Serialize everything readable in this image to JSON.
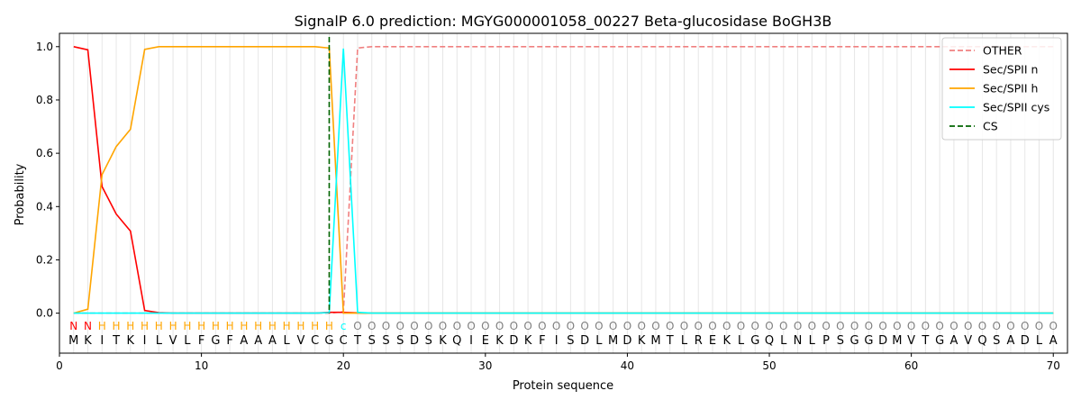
{
  "chart_data": {
    "type": "line",
    "title": "SignalP 6.0 prediction: MGYG000001058_00227 Beta-glucosidase BoGH3B",
    "xlabel": "Protein sequence",
    "ylabel": "Probability",
    "xlim": [
      0,
      71
    ],
    "ylim": [
      -0.15,
      1.05
    ],
    "xticks": [
      0,
      10,
      20,
      30,
      40,
      50,
      60,
      70
    ],
    "yticks": [
      0.0,
      0.2,
      0.4,
      0.6,
      0.8,
      1.0
    ],
    "xtick_labels": [
      "0",
      "10",
      "20",
      "30",
      "40",
      "50",
      "60",
      "70"
    ],
    "ytick_labels": [
      "0.0",
      "0.2",
      "0.4",
      "0.6",
      "0.8",
      "1.0"
    ],
    "vertical_grid": true,
    "legend_position": "top-right",
    "sequence": [
      "M",
      "K",
      "I",
      "T",
      "K",
      "I",
      "L",
      "V",
      "L",
      "F",
      "G",
      "F",
      "A",
      "A",
      "A",
      "L",
      "V",
      "C",
      "G",
      "C",
      "T",
      "S",
      "S",
      "S",
      "D",
      "S",
      "K",
      "Q",
      "I",
      "E",
      "K",
      "D",
      "K",
      "F",
      "I",
      "S",
      "D",
      "L",
      "M",
      "D",
      "K",
      "M",
      "T",
      "L",
      "R",
      "E",
      "K",
      "L",
      "G",
      "Q",
      "L",
      "N",
      "L",
      "P",
      "S",
      "G",
      "G",
      "D",
      "M",
      "V",
      "T",
      "G",
      "A",
      "V",
      "Q",
      "S",
      "A",
      "D",
      "L",
      "A"
    ],
    "region_labels": [
      "N",
      "N",
      "H",
      "H",
      "H",
      "H",
      "H",
      "H",
      "H",
      "H",
      "H",
      "H",
      "H",
      "H",
      "H",
      "H",
      "H",
      "H",
      "H",
      "C",
      "O",
      "O",
      "O",
      "O",
      "O",
      "O",
      "O",
      "O",
      "O",
      "O",
      "O",
      "O",
      "O",
      "O",
      "O",
      "O",
      "O",
      "O",
      "O",
      "O",
      "O",
      "O",
      "O",
      "O",
      "O",
      "O",
      "O",
      "O",
      "O",
      "O",
      "O",
      "O",
      "O",
      "O",
      "O",
      "O",
      "O",
      "O",
      "O",
      "O",
      "O",
      "O",
      "O",
      "O",
      "O",
      "O",
      "O",
      "O",
      "O",
      "O"
    ],
    "region_display": [
      "N",
      "N",
      "H",
      "H",
      "H",
      "H",
      "H",
      "H",
      "H",
      "H",
      "H",
      "H",
      "H",
      "H",
      "H",
      "H",
      "H",
      "H",
      "H",
      "c",
      "O",
      "O",
      "O",
      "O",
      "O",
      "O",
      "O",
      "O",
      "O",
      "O",
      "O",
      "O",
      "O",
      "O",
      "O",
      "O",
      "O",
      "O",
      "O",
      "O",
      "O",
      "O",
      "O",
      "O",
      "O",
      "O",
      "O",
      "O",
      "O",
      "O",
      "O",
      "O",
      "O",
      "O",
      "O",
      "O",
      "O",
      "O",
      "O",
      "O",
      "O",
      "O",
      "O",
      "O",
      "O",
      "O",
      "O",
      "O",
      "O",
      "O"
    ],
    "region_colors": {
      "N": "#ff0000",
      "H": "#ffa500",
      "C": "#00ffff",
      "O": "#808080"
    },
    "series": [
      {
        "name": "OTHER",
        "color": "#f08080",
        "dash": "dashed",
        "x": [
          1,
          2,
          3,
          4,
          5,
          6,
          7,
          8,
          9,
          10,
          11,
          12,
          13,
          14,
          15,
          16,
          17,
          18,
          19,
          20,
          21,
          22,
          23,
          24,
          25,
          26,
          27,
          28,
          29,
          30,
          31,
          32,
          33,
          34,
          35,
          36,
          37,
          38,
          39,
          40,
          41,
          42,
          43,
          44,
          45,
          46,
          47,
          48,
          49,
          50,
          51,
          52,
          53,
          54,
          55,
          56,
          57,
          58,
          59,
          60,
          61,
          62,
          63,
          64,
          65,
          66,
          67,
          68,
          69,
          70
        ],
        "y": [
          0,
          0,
          0,
          0,
          0,
          0,
          0,
          0,
          0,
          0,
          0,
          0,
          0,
          0,
          0,
          0,
          0,
          0,
          0,
          0.005,
          0.995,
          1,
          1,
          1,
          1,
          1,
          1,
          1,
          1,
          1,
          1,
          1,
          1,
          1,
          1,
          1,
          1,
          1,
          1,
          1,
          1,
          1,
          1,
          1,
          1,
          1,
          1,
          1,
          1,
          1,
          1,
          1,
          1,
          1,
          1,
          1,
          1,
          1,
          1,
          1,
          1,
          1,
          1,
          1,
          1,
          1,
          1,
          1,
          1,
          1
        ]
      },
      {
        "name": "Sec/SPII n",
        "color": "#ff0000",
        "dash": "solid",
        "x": [
          1,
          2,
          3,
          4,
          5,
          6,
          7,
          8,
          9,
          10,
          11,
          12,
          13,
          14,
          15,
          16,
          17,
          18,
          19,
          20,
          21,
          22,
          23,
          24,
          25,
          26,
          27,
          28,
          29,
          30,
          31,
          32,
          33,
          34,
          35,
          36,
          37,
          38,
          39,
          40,
          41,
          42,
          43,
          44,
          45,
          46,
          47,
          48,
          49,
          50,
          51,
          52,
          53,
          54,
          55,
          56,
          57,
          58,
          59,
          60,
          61,
          62,
          63,
          64,
          65,
          66,
          67,
          68,
          69,
          70
        ],
        "y": [
          1.0,
          0.988,
          0.475,
          0.372,
          0.308,
          0.01,
          0.002,
          0,
          0,
          0,
          0,
          0,
          0,
          0,
          0,
          0,
          0,
          0,
          0.003,
          0.003,
          0.001,
          0,
          0,
          0,
          0,
          0,
          0,
          0,
          0,
          0,
          0,
          0,
          0,
          0,
          0,
          0,
          0,
          0,
          0,
          0,
          0,
          0,
          0,
          0,
          0,
          0,
          0,
          0,
          0,
          0,
          0,
          0,
          0,
          0,
          0,
          0,
          0,
          0,
          0,
          0,
          0,
          0,
          0,
          0,
          0,
          0,
          0,
          0,
          0,
          0
        ]
      },
      {
        "name": "Sec/SPII h",
        "color": "#ffa500",
        "dash": "solid",
        "x": [
          1,
          2,
          3,
          4,
          5,
          6,
          7,
          8,
          9,
          10,
          11,
          12,
          13,
          14,
          15,
          16,
          17,
          18,
          19,
          20,
          21,
          22,
          23,
          24,
          25,
          26,
          27,
          28,
          29,
          30,
          31,
          32,
          33,
          34,
          35,
          36,
          37,
          38,
          39,
          40,
          41,
          42,
          43,
          44,
          45,
          46,
          47,
          48,
          49,
          50,
          51,
          52,
          53,
          54,
          55,
          56,
          57,
          58,
          59,
          60,
          61,
          62,
          63,
          64,
          65,
          66,
          67,
          68,
          69,
          70
        ],
        "y": [
          0.0,
          0.015,
          0.52,
          0.625,
          0.69,
          0.99,
          1.0,
          1.0,
          1.0,
          1.0,
          1.0,
          1.0,
          1.0,
          1.0,
          1.0,
          1.0,
          1.0,
          1.0,
          0.995,
          0.0,
          0,
          0,
          0,
          0,
          0,
          0,
          0,
          0,
          0,
          0,
          0,
          0,
          0,
          0,
          0,
          0,
          0,
          0,
          0,
          0,
          0,
          0,
          0,
          0,
          0,
          0,
          0,
          0,
          0,
          0,
          0,
          0,
          0,
          0,
          0,
          0,
          0,
          0,
          0,
          0,
          0,
          0,
          0,
          0,
          0,
          0,
          0,
          0,
          0,
          0
        ]
      },
      {
        "name": "Sec/SPII cys",
        "color": "#00ffff",
        "dash": "solid",
        "x": [
          1,
          2,
          3,
          4,
          5,
          6,
          7,
          8,
          9,
          10,
          11,
          12,
          13,
          14,
          15,
          16,
          17,
          18,
          19,
          20,
          21,
          22,
          23,
          24,
          25,
          26,
          27,
          28,
          29,
          30,
          31,
          32,
          33,
          34,
          35,
          36,
          37,
          38,
          39,
          40,
          41,
          42,
          43,
          44,
          45,
          46,
          47,
          48,
          49,
          50,
          51,
          52,
          53,
          54,
          55,
          56,
          57,
          58,
          59,
          60,
          61,
          62,
          63,
          64,
          65,
          66,
          67,
          68,
          69,
          70
        ],
        "y": [
          0,
          0,
          0,
          0,
          0,
          0,
          0,
          0,
          0,
          0,
          0,
          0,
          0,
          0,
          0,
          0,
          0,
          0,
          0.002,
          0.993,
          0.003,
          0,
          0,
          0,
          0,
          0,
          0,
          0,
          0,
          0,
          0,
          0,
          0,
          0,
          0,
          0,
          0,
          0,
          0,
          0,
          0,
          0,
          0,
          0,
          0,
          0,
          0,
          0,
          0,
          0,
          0,
          0,
          0,
          0,
          0,
          0,
          0,
          0,
          0,
          0,
          0,
          0,
          0,
          0,
          0,
          0,
          0,
          0,
          0,
          0
        ]
      },
      {
        "name": "CS",
        "color": "#006400",
        "dash": "dashed",
        "kind": "vline",
        "x_position": 19
      }
    ]
  }
}
